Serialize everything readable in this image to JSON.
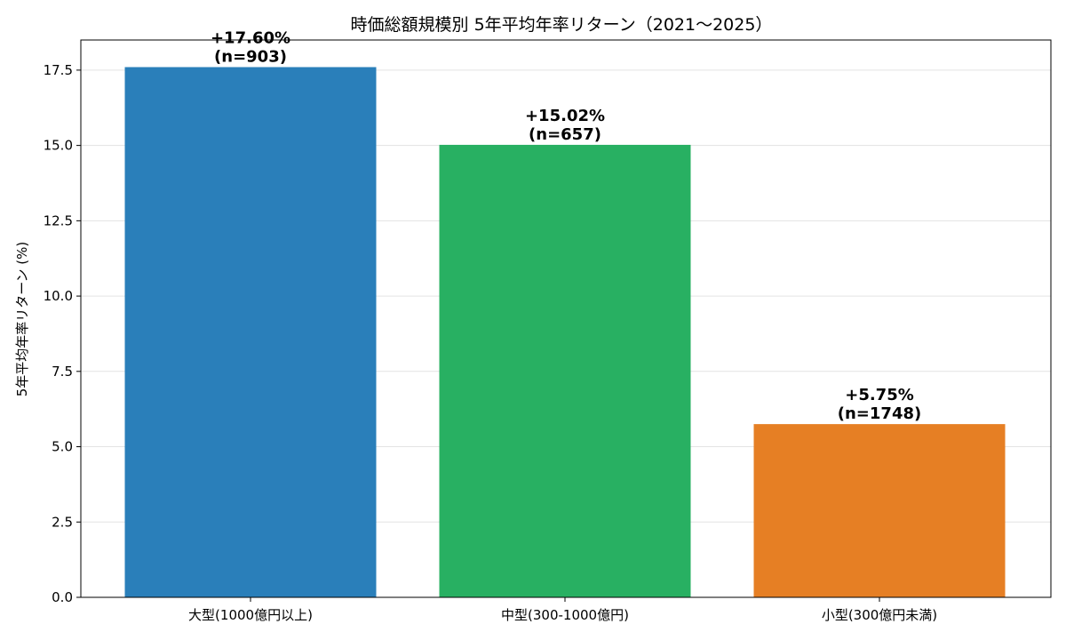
{
  "chart_data": {
    "type": "bar",
    "title": "時価総額規模別 5年平均年率リターン（2021〜2025）",
    "xlabel": "",
    "ylabel": "5年平均年率リターン (%)",
    "categories": [
      "大型(1000億円以上)",
      "中型(300-1000億円)",
      "小型(300億円未満)"
    ],
    "values": [
      17.6,
      15.02,
      5.75
    ],
    "bar_labels": [
      {
        "value_text": "+17.60%",
        "count_text": "(n=903)"
      },
      {
        "value_text": "+15.02%",
        "count_text": "(n=657)"
      },
      {
        "value_text": "+5.75%",
        "count_text": "(n=1748)"
      }
    ],
    "colors": [
      "#2a7fba",
      "#28b062",
      "#e67f24"
    ],
    "ylim": [
      0,
      18.5
    ],
    "yticks": [
      0,
      2.5,
      5,
      7.5,
      10,
      12.5,
      15,
      17.5
    ],
    "ytick_labels": [
      "0.0",
      "2.5",
      "5.0",
      "7.5",
      "10.0",
      "12.5",
      "15.0",
      "17.5"
    ],
    "grid": "horizontal",
    "legend": "none"
  }
}
